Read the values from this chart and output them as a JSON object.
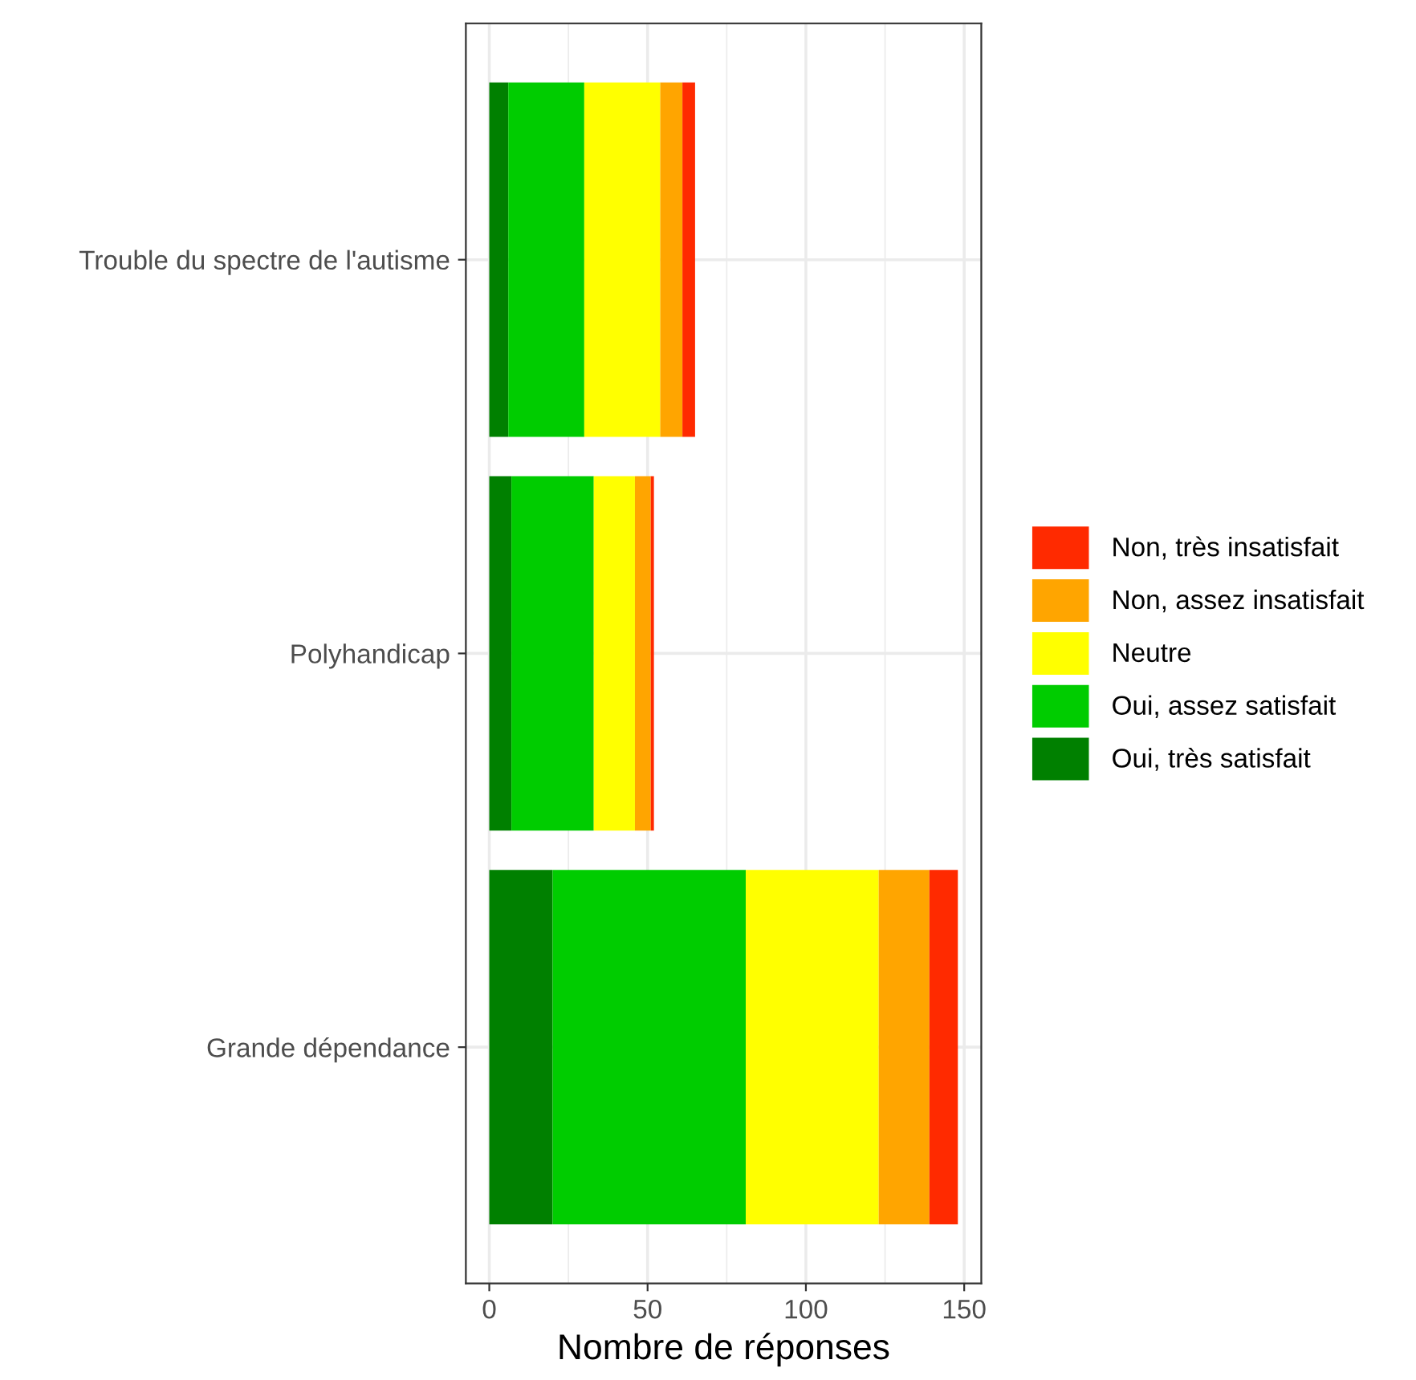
{
  "chart_data": {
    "type": "bar",
    "orientation": "horizontal",
    "stacked": true,
    "xlabel": "Nombre de réponses",
    "categories": [
      "Trouble du spectre de l'autisme",
      "Polyhandicap",
      "Grande dépendance"
    ],
    "series": [
      {
        "name": "Oui, très satisfait",
        "color": "#008000",
        "values": [
          6,
          7,
          20
        ]
      },
      {
        "name": "Oui, assez satisfait",
        "color": "#00cc00",
        "values": [
          24,
          26,
          61
        ]
      },
      {
        "name": "Neutre",
        "color": "#ffff00",
        "values": [
          24,
          13,
          42
        ]
      },
      {
        "name": "Non, assez insatisfait",
        "color": "#ffa500",
        "values": [
          7,
          5,
          16
        ]
      },
      {
        "name": "Non, très insatisfait",
        "color": "#ff2a00",
        "values": [
          4,
          1,
          9
        ]
      }
    ],
    "xlim": [
      -7.4,
      155.4
    ],
    "xticks": [
      0,
      50,
      100,
      150
    ],
    "grid": true,
    "legend": "right"
  }
}
